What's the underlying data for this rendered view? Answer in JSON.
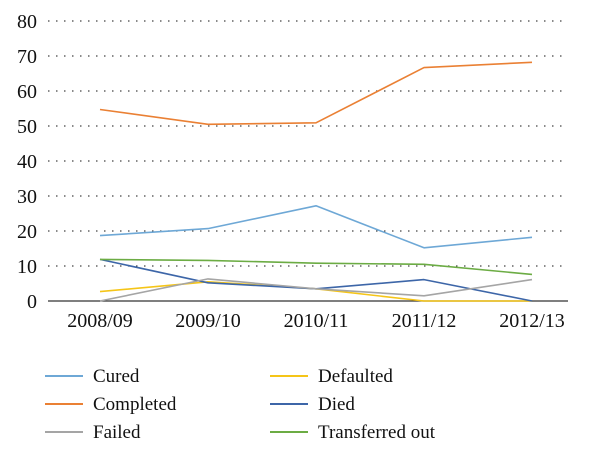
{
  "chart_data": {
    "type": "line",
    "title": "",
    "xlabel": "",
    "ylabel": "",
    "categories": [
      "2008/09",
      "2009/10",
      "2010/11",
      "2011/12",
      "2012/13"
    ],
    "ylim": [
      0,
      80
    ],
    "yticks": [
      "0",
      "10",
      "20",
      "30",
      "40",
      "50",
      "60",
      "70",
      "80"
    ],
    "grid": true,
    "legend_position": "bottom",
    "series": [
      {
        "name": "Cured",
        "color": "#6ea8d6",
        "values": [
          18.7,
          20.7,
          27.2,
          15.2,
          18.2
        ]
      },
      {
        "name": "Defaulted",
        "color": "#f5c518",
        "values": [
          2.7,
          5.5,
          3.5,
          0,
          0
        ]
      },
      {
        "name": "Completed",
        "color": "#ea8034",
        "values": [
          54.7,
          50.5,
          50.9,
          66.7,
          68.2
        ]
      },
      {
        "name": "Died",
        "color": "#3d66a8",
        "values": [
          11.9,
          5.2,
          3.5,
          6.1,
          0
        ]
      },
      {
        "name": "Failed",
        "color": "#a5a5a5",
        "values": [
          0,
          6.3,
          3.5,
          1.5,
          6.1
        ]
      },
      {
        "name": "Transferred out",
        "color": "#6cac44",
        "values": [
          11.9,
          11.6,
          10.8,
          10.5,
          7.6
        ]
      }
    ]
  }
}
